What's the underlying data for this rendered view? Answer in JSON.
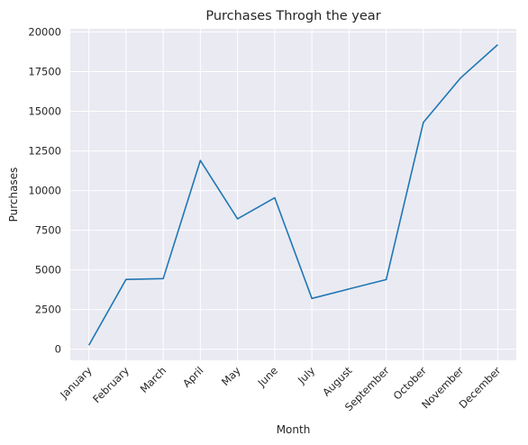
{
  "chart_data": {
    "type": "line",
    "title": "Purchases Throgh the year",
    "xlabel": "Month",
    "ylabel": "Purchases",
    "categories": [
      "January",
      "February",
      "March",
      "April",
      "May",
      "June",
      "July",
      "August",
      "September",
      "October",
      "November",
      "December"
    ],
    "series": [
      {
        "values": [
          250,
          4400,
          4450,
          11900,
          8220,
          9550,
          3200,
          3800,
          4390,
          14300,
          17100,
          19200
        ]
      }
    ],
    "yticks": [
      0,
      2500,
      5000,
      7500,
      10000,
      12500,
      15000,
      17500,
      20000
    ],
    "ylim": [
      -700,
      20200
    ],
    "grid": true,
    "colors": {
      "line": "#1f77b4",
      "plot_background": "#eaeaf2",
      "grid": "#ffffff"
    }
  }
}
